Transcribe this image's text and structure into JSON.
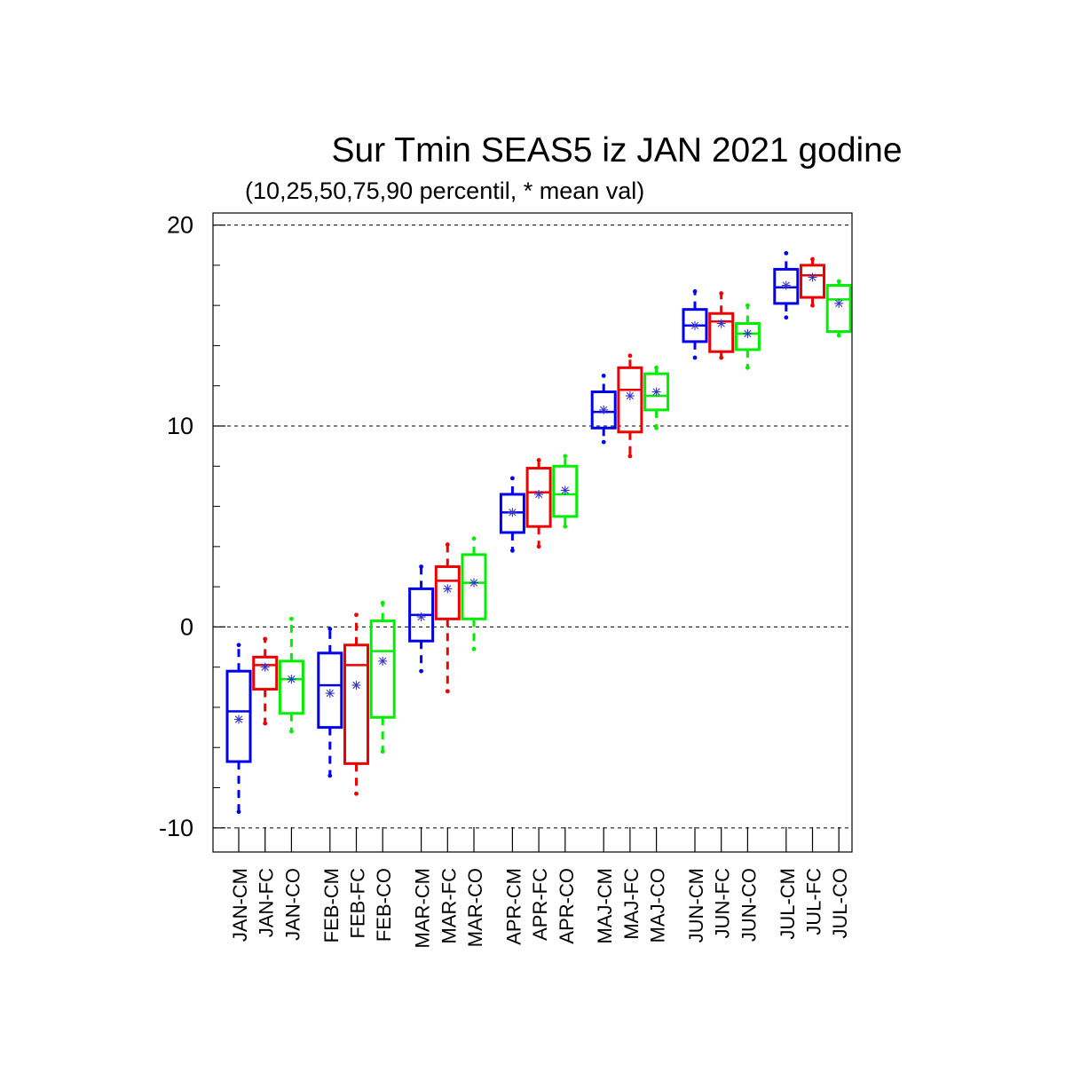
{
  "chart_data": {
    "type": "boxplot",
    "title": "Sur Tmin SEAS5 iz JAN 2021 godine",
    "subtitle": "(10,25,50,75,90 percentil, * mean val)",
    "ylim": [
      -11.2,
      20.6
    ],
    "yticks": [
      -10,
      0,
      10,
      20
    ],
    "ytick_labels": [
      "-10",
      "0",
      "10",
      "20"
    ],
    "grid": "dashed horizontal at major ticks",
    "series_colors": {
      "CM": "#0000ee",
      "FC": "#ee0000",
      "CO": "#00ee00"
    },
    "categories": [
      "JAN-CM",
      "JAN-FC",
      "JAN-CO",
      "FEB-CM",
      "FEB-FC",
      "FEB-CO",
      "MAR-CM",
      "MAR-FC",
      "MAR-CO",
      "APR-CM",
      "APR-FC",
      "APR-CO",
      "MAJ-CM",
      "MAJ-FC",
      "MAJ-CO",
      "JUN-CM",
      "JUN-FC",
      "JUN-CO",
      "JUL-CM",
      "JUL-FC",
      "JUL-CO"
    ],
    "boxes": [
      {
        "label": "JAN-CM",
        "p10": -9.2,
        "p25": -6.7,
        "p50": -4.2,
        "p75": -2.2,
        "p90": -0.9,
        "mean": -4.6
      },
      {
        "label": "JAN-FC",
        "p10": -4.8,
        "p25": -3.1,
        "p50": -1.9,
        "p75": -1.5,
        "p90": -0.6,
        "mean": -2.0
      },
      {
        "label": "JAN-CO",
        "p10": -5.2,
        "p25": -4.3,
        "p50": -2.6,
        "p75": -1.7,
        "p90": 0.4,
        "mean": -2.6
      },
      {
        "label": "FEB-CM",
        "p10": -7.4,
        "p25": -5.0,
        "p50": -2.9,
        "p75": -1.3,
        "p90": -0.1,
        "mean": -3.3
      },
      {
        "label": "FEB-FC",
        "p10": -8.3,
        "p25": -6.8,
        "p50": -1.9,
        "p75": -0.9,
        "p90": 0.6,
        "mean": -2.9
      },
      {
        "label": "FEB-CO",
        "p10": -6.2,
        "p25": -4.5,
        "p50": -1.2,
        "p75": 0.3,
        "p90": 1.2,
        "mean": -1.7
      },
      {
        "label": "MAR-CM",
        "p10": -2.2,
        "p25": -0.7,
        "p50": 0.6,
        "p75": 1.9,
        "p90": 3.0,
        "mean": 0.5
      },
      {
        "label": "MAR-FC",
        "p10": -3.2,
        "p25": 0.4,
        "p50": 2.3,
        "p75": 3.0,
        "p90": 4.1,
        "mean": 1.9
      },
      {
        "label": "MAR-CO",
        "p10": -1.1,
        "p25": 0.4,
        "p50": 2.2,
        "p75": 3.6,
        "p90": 4.4,
        "mean": 2.2
      },
      {
        "label": "APR-CM",
        "p10": 3.8,
        "p25": 4.7,
        "p50": 5.7,
        "p75": 6.6,
        "p90": 7.4,
        "mean": 5.7
      },
      {
        "label": "APR-FC",
        "p10": 4.0,
        "p25": 5.0,
        "p50": 6.7,
        "p75": 7.9,
        "p90": 8.3,
        "mean": 6.6
      },
      {
        "label": "APR-CO",
        "p10": 5.0,
        "p25": 5.5,
        "p50": 6.6,
        "p75": 8.0,
        "p90": 8.5,
        "mean": 6.8
      },
      {
        "label": "MAJ-CM",
        "p10": 9.2,
        "p25": 9.9,
        "p50": 10.7,
        "p75": 11.7,
        "p90": 12.5,
        "mean": 10.8
      },
      {
        "label": "MAJ-FC",
        "p10": 8.5,
        "p25": 9.7,
        "p50": 11.8,
        "p75": 12.9,
        "p90": 13.5,
        "mean": 11.5
      },
      {
        "label": "MAJ-CO",
        "p10": 9.9,
        "p25": 10.8,
        "p50": 11.5,
        "p75": 12.6,
        "p90": 12.9,
        "mean": 11.7
      },
      {
        "label": "JUN-CM",
        "p10": 13.4,
        "p25": 14.2,
        "p50": 15.0,
        "p75": 15.8,
        "p90": 16.7,
        "mean": 15.0
      },
      {
        "label": "JUN-FC",
        "p10": 13.4,
        "p25": 13.7,
        "p50": 15.2,
        "p75": 15.6,
        "p90": 16.6,
        "mean": 15.1
      },
      {
        "label": "JUN-CO",
        "p10": 12.9,
        "p25": 13.8,
        "p50": 14.6,
        "p75": 15.1,
        "p90": 16.0,
        "mean": 14.6
      },
      {
        "label": "JUL-CM",
        "p10": 15.4,
        "p25": 16.1,
        "p50": 16.9,
        "p75": 17.8,
        "p90": 18.6,
        "mean": 17.0
      },
      {
        "label": "JUL-FC",
        "p10": 16.0,
        "p25": 16.4,
        "p50": 17.5,
        "p75": 18.0,
        "p90": 18.3,
        "mean": 17.4
      },
      {
        "label": "JUL-CO",
        "p10": 14.5,
        "p25": 14.7,
        "p50": 16.3,
        "p75": 17.0,
        "p90": 17.2,
        "mean": 16.1
      }
    ]
  }
}
